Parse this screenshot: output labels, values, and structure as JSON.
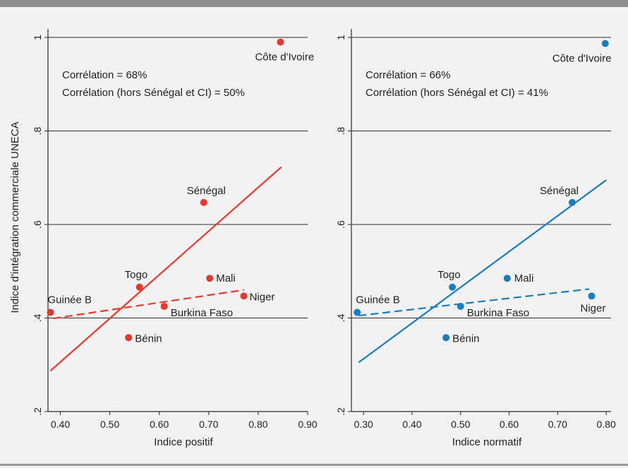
{
  "chart_data": [
    {
      "type": "scatter",
      "title": "",
      "xlabel": "Indice positif",
      "ylabel": "Indice d'intégration commerciale UNECA",
      "xlim": [
        0.375,
        0.9
      ],
      "ylim": [
        0.2,
        1.0
      ],
      "xticks": [
        0.4,
        0.5,
        0.6,
        0.7,
        0.8,
        0.9
      ],
      "xtick_labels": [
        "0.40",
        "0.50",
        "0.60",
        "0.70",
        "0.80",
        "0.90"
      ],
      "yticks": [
        0.2,
        0.4,
        0.6,
        0.8,
        1.0
      ],
      "ytick_labels": [
        ".2",
        ".4",
        ".6",
        ".8",
        "1"
      ],
      "gridlines_y": true,
      "color": "#e8372b",
      "annotations": [
        "Corrélation = 68%",
        "Corrélation (hors Sénégal et CI) = 50%"
      ],
      "points": [
        {
          "label": "Côte d'Ivoire",
          "x": 0.845,
          "y": 0.99
        },
        {
          "label": "Sénégal",
          "x": 0.69,
          "y": 0.647
        },
        {
          "label": "Mali",
          "x": 0.702,
          "y": 0.485
        },
        {
          "label": "Togo",
          "x": 0.56,
          "y": 0.466
        },
        {
          "label": "Niger",
          "x": 0.771,
          "y": 0.447
        },
        {
          "label": "Burkina Faso",
          "x": 0.61,
          "y": 0.425
        },
        {
          "label": "Guinée B",
          "x": 0.38,
          "y": 0.412
        },
        {
          "label": "Bénin",
          "x": 0.538,
          "y": 0.358
        }
      ],
      "fit_lines": [
        {
          "style": "solid",
          "x": [
            0.38,
            0.847
          ],
          "y": [
            0.287,
            0.723
          ]
        },
        {
          "style": "dashed",
          "x": [
            0.385,
            0.771
          ],
          "y": [
            0.399,
            0.46
          ]
        }
      ]
    },
    {
      "type": "scatter",
      "title": "",
      "xlabel": "Indice normatif",
      "ylabel": "",
      "xlim": [
        0.275,
        0.81
      ],
      "ylim": [
        0.2,
        1.0
      ],
      "xticks": [
        0.3,
        0.4,
        0.5,
        0.6,
        0.7,
        0.8
      ],
      "xtick_labels": [
        "0.30",
        "0.40",
        "0.50",
        "0.60",
        "0.70",
        "0.80"
      ],
      "yticks": [
        0.2,
        0.4,
        0.6,
        0.8,
        1.0
      ],
      "ytick_labels": [
        ".2",
        ".4",
        ".6",
        ".8",
        "1"
      ],
      "gridlines_y": true,
      "color": "#1a7cc1",
      "annotations": [
        "Corrélation = 66%",
        "Corrélation (hors Sénégal et CI) = 41%"
      ],
      "points": [
        {
          "label": "Côte d'Ivoire",
          "x": 0.798,
          "y": 0.987
        },
        {
          "label": "Sénégal",
          "x": 0.73,
          "y": 0.647
        },
        {
          "label": "Mali",
          "x": 0.596,
          "y": 0.485
        },
        {
          "label": "Togo",
          "x": 0.483,
          "y": 0.466
        },
        {
          "label": "Niger",
          "x": 0.77,
          "y": 0.447
        },
        {
          "label": "Burkina Faso",
          "x": 0.5,
          "y": 0.425
        },
        {
          "label": "Guinée B",
          "x": 0.287,
          "y": 0.412
        },
        {
          "label": "Bénin",
          "x": 0.47,
          "y": 0.358
        }
      ],
      "fit_lines": [
        {
          "style": "solid",
          "x": [
            0.29,
            0.8
          ],
          "y": [
            0.305,
            0.695
          ]
        },
        {
          "style": "dashed",
          "x": [
            0.29,
            0.765
          ],
          "y": [
            0.405,
            0.462
          ]
        }
      ]
    }
  ]
}
